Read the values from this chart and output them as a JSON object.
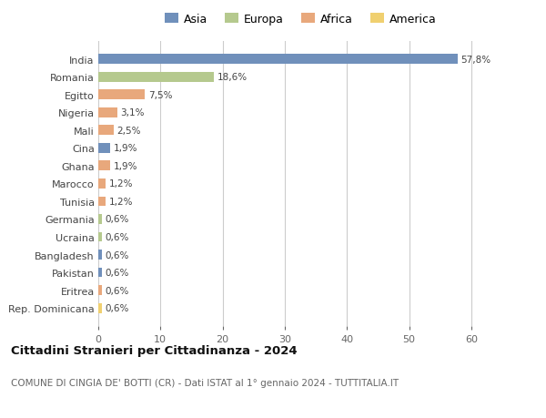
{
  "categories": [
    "India",
    "Romania",
    "Egitto",
    "Nigeria",
    "Mali",
    "Cina",
    "Ghana",
    "Marocco",
    "Tunisia",
    "Germania",
    "Ucraina",
    "Bangladesh",
    "Pakistan",
    "Eritrea",
    "Rep. Dominicana"
  ],
  "values": [
    57.8,
    18.6,
    7.5,
    3.1,
    2.5,
    1.9,
    1.9,
    1.2,
    1.2,
    0.6,
    0.6,
    0.6,
    0.6,
    0.6,
    0.6
  ],
  "labels": [
    "57,8%",
    "18,6%",
    "7,5%",
    "3,1%",
    "2,5%",
    "1,9%",
    "1,9%",
    "1,2%",
    "1,2%",
    "0,6%",
    "0,6%",
    "0,6%",
    "0,6%",
    "0,6%",
    "0,6%"
  ],
  "continents": [
    "Asia",
    "Europa",
    "Africa",
    "Africa",
    "Africa",
    "Asia",
    "Africa",
    "Africa",
    "Africa",
    "Europa",
    "Europa",
    "Asia",
    "Asia",
    "Africa",
    "America"
  ],
  "colors": {
    "Asia": "#7090bb",
    "Europa": "#b5c98e",
    "Africa": "#e8a87c",
    "America": "#f0d070"
  },
  "title": "Cittadini Stranieri per Cittadinanza - 2024",
  "subtitle": "COMUNE DI CINGIA DE' BOTTI (CR) - Dati ISTAT al 1° gennaio 2024 - TUTTITALIA.IT",
  "xlim": [
    0,
    65
  ],
  "xticks": [
    0,
    10,
    20,
    30,
    40,
    50,
    60
  ],
  "background_color": "#ffffff",
  "grid_color": "#cccccc"
}
